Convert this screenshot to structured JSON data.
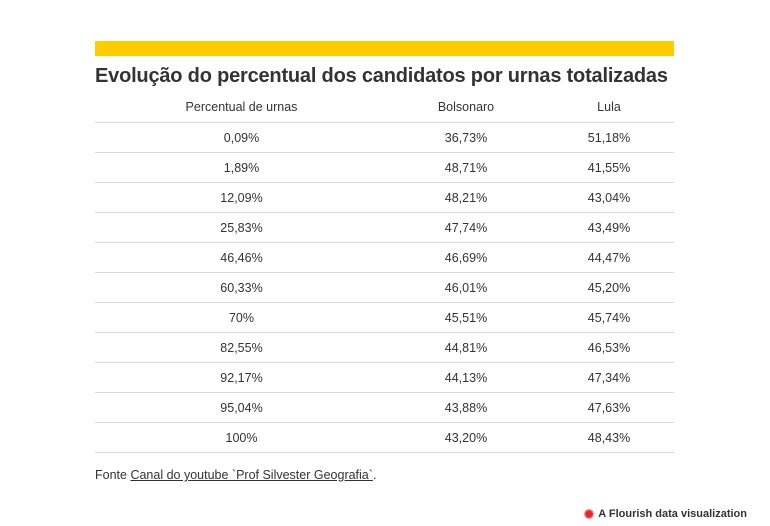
{
  "chart_data": {
    "type": "table",
    "title": "Evolução do percentual dos candidatos por urnas totalizadas",
    "columns": [
      "Percentual de urnas",
      "Bolsonaro",
      "Lula"
    ],
    "rows": [
      [
        "0,09%",
        "36,73%",
        "51,18%"
      ],
      [
        "1,89%",
        "48,71%",
        "41,55%"
      ],
      [
        "12,09%",
        "48,21%",
        "43,04%"
      ],
      [
        "25,83%",
        "47,74%",
        "43,49%"
      ],
      [
        "46,46%",
        "46,69%",
        "44,47%"
      ],
      [
        "60,33%",
        "46,01%",
        "45,20%"
      ],
      [
        "70%",
        "45,51%",
        "45,74%"
      ],
      [
        "82,55%",
        "44,81%",
        "46,53%"
      ],
      [
        "92,17%",
        "44,13%",
        "47,34%"
      ],
      [
        "95,04%",
        "43,88%",
        "47,63%"
      ],
      [
        "100%",
        "43,20%",
        "48,43%"
      ]
    ]
  },
  "accent_color": "#ffcc00",
  "source": {
    "prefix": "Fonte ",
    "link_text": "Canal do youtube `Prof Silvester Geografia`",
    "suffix": "."
  },
  "footer": {
    "credit": "A Flourish data visualization",
    "icon": "flourish-logo-icon"
  }
}
